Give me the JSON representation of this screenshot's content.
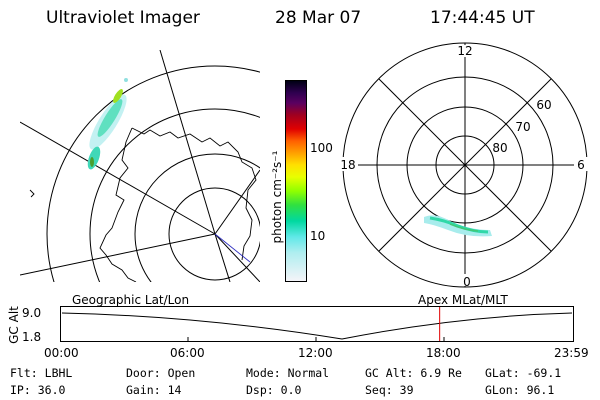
{
  "header": {
    "instrument": "Ultraviolet Imager",
    "date": "28 Mar 07",
    "time": "17:44:45 UT"
  },
  "colorbar": {
    "unit_label": "photon cm⁻²s⁻¹",
    "ticks": [
      "100",
      "10"
    ]
  },
  "polar": {
    "mlt_labels": {
      "top": "12",
      "left": "18",
      "right": "6",
      "bottom": "0"
    },
    "lat_labels": [
      "60",
      "70",
      "80"
    ]
  },
  "timeline": {
    "left_title": "Geographic Lat/Lon",
    "right_title": "Apex MLat/MLT",
    "axis_label": "GC Alt",
    "y_ticks": [
      "9.0",
      "1.8"
    ],
    "x_ticks": [
      "00:00",
      "06:00",
      "12:00",
      "18:00",
      "23:59"
    ],
    "current_time_marker_hours": 17.75,
    "colors": {
      "marker": "#e00000",
      "curve": "#000000"
    }
  },
  "status": {
    "row1": [
      {
        "key": "Flt:",
        "value": "LBHL"
      },
      {
        "key": "Door:",
        "value": "Open"
      },
      {
        "key": "Mode:",
        "value": "Normal"
      },
      {
        "key": "GC Alt:",
        "value": "6.9 Re"
      },
      {
        "key": "GLat:",
        "value": "-69.1"
      }
    ],
    "row2": [
      {
        "key": "IP:",
        "value": "36.0"
      },
      {
        "key": "Gain:",
        "value": "14"
      },
      {
        "key": "Dsp:",
        "value": "0.0"
      },
      {
        "key": "Seq:",
        "value": "39"
      },
      {
        "key": "GLon:",
        "value": "96.1"
      }
    ]
  }
}
